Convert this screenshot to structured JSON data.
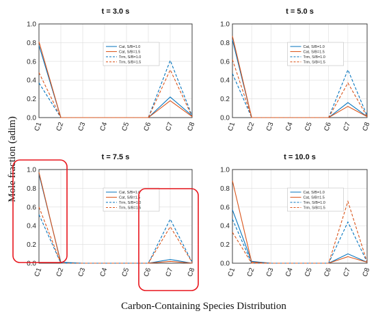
{
  "figure": {
    "ylabel": "Mole fraction (adim)",
    "xlabel": "Carbon-Containing Species Distribution"
  },
  "chart_data": [
    {
      "type": "line",
      "title": "t = 3.0 s",
      "categories": [
        "C1",
        "C2",
        "C3",
        "C4",
        "C5",
        "C6",
        "C7",
        "C8"
      ],
      "ylim": [
        0,
        1.0
      ],
      "yticks": [
        "0.0",
        "0.2",
        "0.4",
        "0.6",
        "0.8",
        "1.0"
      ],
      "grid": true,
      "legend": "top-center",
      "series": [
        {
          "name": "Cat, S/B=1.0",
          "color": "#0072BD",
          "style": "solid",
          "values": [
            0.77,
            0.0,
            0.0,
            0.0,
            0.0,
            0.0,
            0.22,
            0.02
          ]
        },
        {
          "name": "Cat, S/B=1.5",
          "color": "#D95319",
          "style": "solid",
          "values": [
            0.81,
            0.0,
            0.0,
            0.0,
            0.0,
            0.0,
            0.18,
            0.01
          ]
        },
        {
          "name": "Trm, S/B=1.0",
          "color": "#0072BD",
          "style": "dashed",
          "values": [
            0.37,
            0.0,
            0.0,
            0.0,
            0.0,
            0.0,
            0.61,
            0.02
          ]
        },
        {
          "name": "Trm, S/B=1.5",
          "color": "#D95319",
          "style": "dashed",
          "values": [
            0.48,
            0.0,
            0.0,
            0.0,
            0.0,
            0.0,
            0.51,
            0.01
          ]
        }
      ]
    },
    {
      "type": "line",
      "title": "t = 5.0 s",
      "categories": [
        "C1",
        "C2",
        "C3",
        "C4",
        "C5",
        "C6",
        "C7",
        "C8"
      ],
      "ylim": [
        0,
        1.0
      ],
      "yticks": [
        "0.0",
        "0.2",
        "0.4",
        "0.6",
        "0.8",
        "1.0"
      ],
      "grid": true,
      "legend": "top-center",
      "series": [
        {
          "name": "Cat, S/B=1.0",
          "color": "#0072BD",
          "style": "solid",
          "values": [
            0.83,
            0.0,
            0.0,
            0.0,
            0.0,
            0.0,
            0.16,
            0.01
          ]
        },
        {
          "name": "Cat, S/B=1.5",
          "color": "#D95319",
          "style": "solid",
          "values": [
            0.87,
            0.0,
            0.0,
            0.0,
            0.0,
            0.0,
            0.12,
            0.01
          ]
        },
        {
          "name": "Trm, S/B=1.0",
          "color": "#0072BD",
          "style": "dashed",
          "values": [
            0.47,
            0.0,
            0.0,
            0.0,
            0.0,
            0.0,
            0.51,
            0.02
          ]
        },
        {
          "name": "Trm, S/B=1.5",
          "color": "#D95319",
          "style": "dashed",
          "values": [
            0.62,
            0.0,
            0.0,
            0.0,
            0.0,
            0.0,
            0.37,
            0.01
          ]
        }
      ]
    },
    {
      "type": "line",
      "title": "t = 7.5 s",
      "categories": [
        "C1",
        "C2",
        "C3",
        "C4",
        "C5",
        "C6",
        "C7",
        "C8"
      ],
      "ylim": [
        0,
        1.0
      ],
      "yticks": [
        "0.0",
        "0.2",
        "0.4",
        "0.6",
        "0.8",
        "1.0"
      ],
      "grid": true,
      "legend": "top-center",
      "series": [
        {
          "name": "Cat, S/B=1.0",
          "color": "#0072BD",
          "style": "solid",
          "values": [
            0.95,
            0.01,
            0.0,
            0.0,
            0.0,
            0.0,
            0.04,
            0.0
          ]
        },
        {
          "name": "Cat, S/B=1.5",
          "color": "#D95319",
          "style": "solid",
          "values": [
            0.97,
            0.0,
            0.0,
            0.0,
            0.0,
            0.0,
            0.02,
            0.0
          ]
        },
        {
          "name": "Trm, S/B=1.0",
          "color": "#0072BD",
          "style": "dashed",
          "values": [
            0.52,
            0.0,
            0.0,
            0.0,
            0.0,
            0.0,
            0.47,
            0.01
          ]
        },
        {
          "name": "Trm, S/B=1.5",
          "color": "#D95319",
          "style": "dashed",
          "values": [
            0.6,
            0.0,
            0.0,
            0.0,
            0.0,
            0.0,
            0.39,
            0.01
          ]
        }
      ]
    },
    {
      "type": "line",
      "title": "t = 10.0 s",
      "categories": [
        "C1",
        "C2",
        "C3",
        "C4",
        "C5",
        "C6",
        "C7",
        "C8"
      ],
      "ylim": [
        0,
        1.0
      ],
      "yticks": [
        "0.0",
        "0.2",
        "0.4",
        "0.6",
        "0.8",
        "1.0"
      ],
      "grid": true,
      "legend": "top-center",
      "series": [
        {
          "name": "Cat, S/B=1.0",
          "color": "#0072BD",
          "style": "solid",
          "values": [
            0.57,
            0.02,
            0.0,
            0.0,
            0.0,
            0.0,
            0.1,
            0.01
          ]
        },
        {
          "name": "Cat, S/B=1.5",
          "color": "#D95319",
          "style": "solid",
          "values": [
            0.88,
            0.01,
            0.0,
            0.0,
            0.0,
            0.0,
            0.07,
            0.01
          ]
        },
        {
          "name": "Trm, S/B=1.0",
          "color": "#0072BD",
          "style": "dashed",
          "values": [
            0.47,
            0.0,
            0.0,
            0.0,
            0.0,
            0.0,
            0.44,
            0.01
          ]
        },
        {
          "name": "Trm, S/B=1.5",
          "color": "#D95319",
          "style": "dashed",
          "values": [
            0.33,
            0.0,
            0.0,
            0.0,
            0.0,
            0.0,
            0.66,
            0.01
          ]
        }
      ]
    }
  ],
  "highlights": {
    "color": "#E8141B",
    "boxes": [
      {
        "panel": 2,
        "categories": [
          "C1",
          "C2"
        ]
      },
      {
        "panel": 2,
        "categories": [
          "C6",
          "C8"
        ]
      }
    ]
  }
}
